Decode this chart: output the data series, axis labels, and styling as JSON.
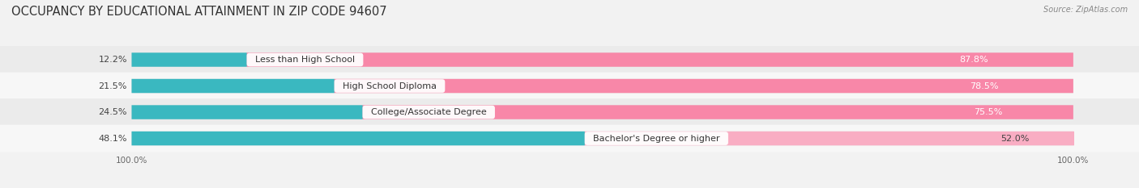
{
  "title": "OCCUPANCY BY EDUCATIONAL ATTAINMENT IN ZIP CODE 94607",
  "source": "Source: ZipAtlas.com",
  "categories": [
    "Less than High School",
    "High School Diploma",
    "College/Associate Degree",
    "Bachelor's Degree or higher"
  ],
  "owner_values": [
    12.2,
    21.5,
    24.5,
    48.1
  ],
  "renter_values": [
    87.8,
    78.5,
    75.5,
    52.0
  ],
  "owner_color": "#3ab8c0",
  "renter_color": "#f887a8",
  "renter_color_light": "#f9adc3",
  "bg_color": "#f2f2f2",
  "row_colors": [
    "#ebebeb",
    "#f7f7f7",
    "#ebebeb",
    "#f7f7f7"
  ],
  "title_fontsize": 10.5,
  "label_fontsize": 8.0,
  "tick_fontsize": 7.5,
  "legend_fontsize": 8.0,
  "source_fontsize": 7.0,
  "bar_height": 0.52
}
